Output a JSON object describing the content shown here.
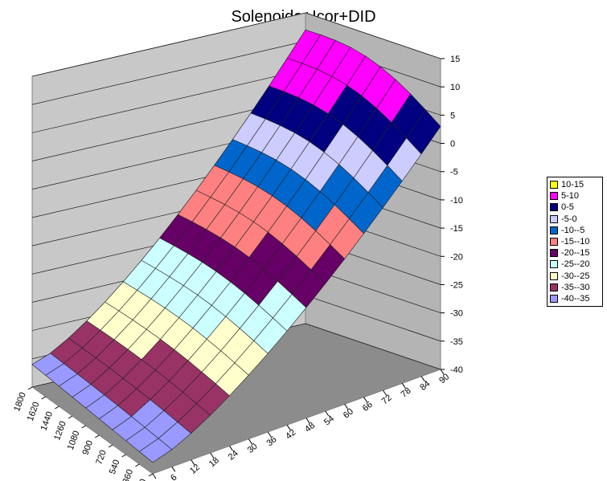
{
  "chart_data": {
    "type": "surface",
    "title": "Solenoide+Icor+DID",
    "z_ticks": [
      "15",
      "10",
      "5",
      "0",
      "-5",
      "-10",
      "-15",
      "-20",
      "-25",
      "-30",
      "-35",
      "-40"
    ],
    "zlim": [
      -40,
      15
    ],
    "x_ticks": [
      "0",
      "6",
      "12",
      "18",
      "24",
      "30",
      "36",
      "42",
      "48",
      "54",
      "60",
      "66",
      "72",
      "78",
      "84",
      "90"
    ],
    "y_ticks": [
      "180",
      "360",
      "540",
      "720",
      "900",
      "1080",
      "1260",
      "1440",
      "1620",
      "1800"
    ],
    "bands": [
      {
        "label": "10-15",
        "color": "#ffff00"
      },
      {
        "label": "5-10",
        "color": "#ff00ff"
      },
      {
        "label": "0-5",
        "color": "#000080"
      },
      {
        "label": "-5-0",
        "color": "#ccccff"
      },
      {
        "label": "-10--5",
        "color": "#0066cc"
      },
      {
        "label": "-15--10",
        "color": "#ff8080"
      },
      {
        "label": "-20--15",
        "color": "#660066"
      },
      {
        "label": "-25--20",
        "color": "#ccffff"
      },
      {
        "label": "-30--25",
        "color": "#ffffcc"
      },
      {
        "label": "-35--30",
        "color": "#993366"
      },
      {
        "label": "-40--35",
        "color": "#9999ff"
      }
    ],
    "surface": {
      "description_of_values": "z estimated over x=0..90 and y=180..1800",
      "z_at_x0": {
        "180": -38,
        "1800": -36
      },
      "z_at_x90": {
        "180": 3,
        "1800": 12
      },
      "max": 13,
      "min": -38
    },
    "grid": true
  }
}
